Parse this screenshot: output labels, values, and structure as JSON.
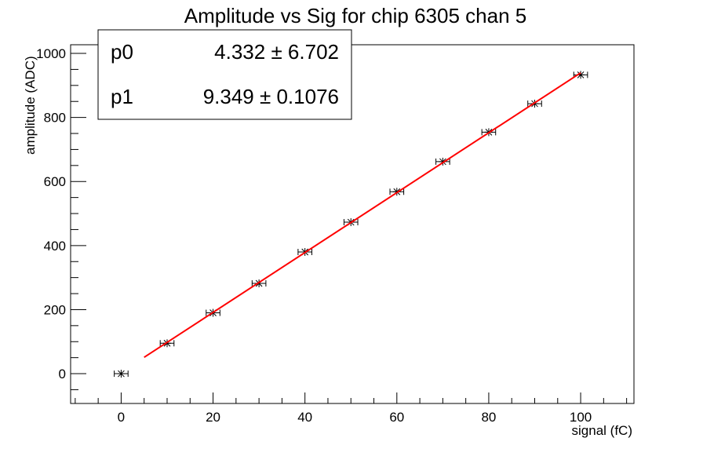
{
  "chart_data": {
    "type": "scatter",
    "title": "Amplitude vs Sig for chip 6305 chan 5",
    "xlabel": "signal (fC)",
    "ylabel": "amplitude (ADC)",
    "x": [
      0,
      10,
      20,
      30,
      40,
      50,
      60,
      70,
      80,
      90,
      100
    ],
    "series": [
      {
        "color": "#000000",
        "values": [
          0,
          95,
          190,
          282,
          380,
          473,
          568,
          662,
          754,
          843,
          933
        ],
        "x_errors": [
          1.5,
          1.5,
          1.5,
          1.5,
          1.5,
          1.5,
          1.5,
          1.5,
          1.5,
          1.5,
          1.5
        ]
      }
    ],
    "fit": {
      "color": "#ff0000",
      "x": [
        5,
        100
      ],
      "y": [
        51.1,
        939.2
      ]
    },
    "stats": [
      {
        "name": "p0",
        "label": "4.332 ± 6.702"
      },
      {
        "name": "p1",
        "label": "9.349 ± 0.1076"
      }
    ],
    "xlim": [
      -11,
      111.6
    ],
    "ylim": [
      -93,
      1027
    ],
    "xticks": [
      0,
      20,
      40,
      60,
      80,
      100
    ],
    "yticks": [
      0,
      200,
      400,
      600,
      800,
      1000
    ],
    "xminorticks": [
      -10,
      -5,
      5,
      10,
      15,
      25,
      30,
      35,
      45,
      50,
      55,
      65,
      70,
      75,
      85,
      90,
      95,
      105,
      110
    ],
    "yminorticks": [
      -50,
      50,
      100,
      150,
      250,
      300,
      350,
      450,
      500,
      550,
      650,
      700,
      750,
      850,
      900,
      950
    ]
  }
}
